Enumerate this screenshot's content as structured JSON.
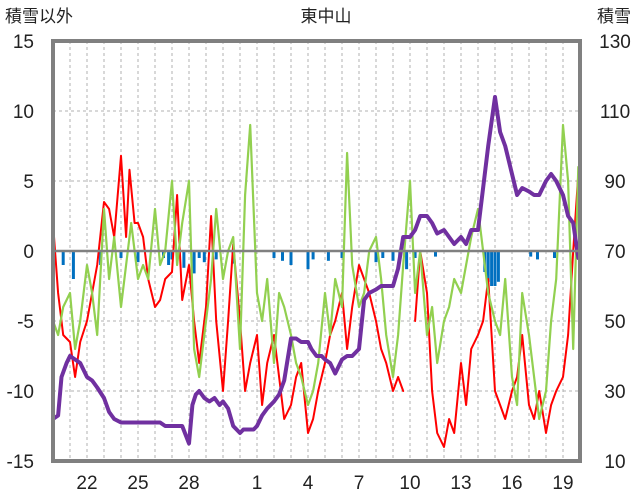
{
  "chart_data": {
    "type": "line",
    "title": "東中山",
    "left_axis_label": "積雪以外",
    "right_axis_label": "積雪",
    "left_ylim": [
      -15,
      15
    ],
    "left_ticks": [
      "15",
      "10",
      "5",
      "0",
      "-5",
      "-10",
      "-15"
    ],
    "right_ylim": [
      10,
      130
    ],
    "right_ticks": [
      "130",
      "110",
      "90",
      "70",
      "50",
      "30",
      "10"
    ],
    "x_day_range": [
      20,
      51
    ],
    "x_ticks": [
      {
        "day": 22,
        "label": "22"
      },
      {
        "day": 25,
        "label": "25"
      },
      {
        "day": 28,
        "label": "28"
      },
      {
        "day": 32,
        "label": "1"
      },
      {
        "day": 35,
        "label": "4"
      },
      {
        "day": 38,
        "label": "7"
      },
      {
        "day": 41,
        "label": "10"
      },
      {
        "day": 44,
        "label": "13"
      },
      {
        "day": 47,
        "label": "16"
      },
      {
        "day": 50,
        "label": "19"
      }
    ],
    "grid": true,
    "colors": {
      "temperature": "#ff0000",
      "temp_change": "#92d050",
      "snow_depth": "#7030a0",
      "snow_change": "#0070c0",
      "frame": "#808080",
      "zero_line": "#808080"
    },
    "series": [
      {
        "color": "#ff0000",
        "axis": "left",
        "x": [
          20.0,
          20.3,
          20.6,
          21.0,
          21.3,
          21.6,
          22.0,
          22.3,
          22.6,
          23.0,
          23.3,
          23.6,
          24.0,
          24.3,
          24.5,
          24.8,
          25.0,
          25.3,
          25.6,
          26.0,
          26.3,
          26.6,
          27.0,
          27.3,
          27.6,
          28.0,
          28.3,
          28.6,
          29.0,
          29.3,
          29.6,
          30.0,
          30.3,
          30.6,
          31.0,
          31.3,
          31.6,
          32.0,
          32.3,
          32.6,
          33.0,
          33.3,
          33.6,
          34.0,
          34.3,
          34.6,
          35.0,
          35.3,
          35.6,
          36.0,
          36.3,
          36.6,
          37.0,
          37.3,
          37.6,
          38.0,
          38.3,
          38.6,
          39.0,
          39.3,
          39.6,
          40.0,
          40.3,
          40.6,
          41.0,
          41.3,
          41.6,
          42.0,
          42.3,
          42.6,
          43.0,
          43.3,
          43.6,
          44.0,
          44.3,
          44.6,
          45.0,
          45.3,
          45.6,
          46.0,
          46.3,
          46.6,
          47.0,
          47.3,
          47.6,
          48.0,
          48.3,
          48.6,
          49.0,
          49.3,
          49.6,
          50.0,
          50.3,
          50.6,
          50.9
        ],
        "y": [
          2,
          -3,
          -6,
          -6.5,
          -9,
          -6.5,
          -5,
          -3,
          -1,
          3.5,
          3,
          1,
          6.8,
          1,
          5.8,
          2,
          2,
          1,
          -2,
          -4,
          -3.5,
          -2,
          -1.5,
          4,
          -3.5,
          -1,
          -5,
          -8,
          -4,
          2.5,
          -5,
          -10,
          -5,
          0.5,
          -5,
          -10,
          -8,
          -6,
          -11,
          -8,
          -6,
          -9,
          -12,
          -11,
          -9,
          -8,
          -13,
          -12,
          -10,
          -8,
          -6,
          -5,
          -3,
          -7,
          -4,
          -1,
          -2,
          -3,
          -5,
          -7,
          -8,
          -10,
          -9,
          -10,
          null,
          -5,
          0,
          -3,
          -10,
          -13,
          -14,
          -12,
          -13,
          -8,
          -11,
          -7,
          -6,
          -5,
          -2,
          -10,
          -11,
          -12,
          -10,
          -9,
          -6,
          -11,
          -12,
          -10,
          -13,
          -11,
          -10,
          -9,
          -6,
          0,
          5.5
        ]
      },
      {
        "color": "#92d050",
        "axis": "left",
        "x": [
          20.0,
          20.3,
          20.6,
          21.0,
          21.3,
          21.6,
          22.0,
          22.3,
          22.6,
          23.0,
          23.3,
          23.6,
          24.0,
          24.3,
          24.6,
          25.0,
          25.3,
          25.6,
          26.0,
          26.3,
          26.6,
          27.0,
          27.3,
          27.6,
          28.0,
          28.3,
          28.6,
          29.0,
          29.3,
          29.6,
          30.0,
          30.3,
          30.6,
          31.0,
          31.3,
          31.6,
          32.0,
          32.3,
          32.6,
          33.0,
          33.3,
          33.6,
          34.0,
          34.3,
          34.6,
          35.0,
          35.3,
          35.6,
          36.0,
          36.3,
          36.6,
          37.0,
          37.3,
          37.6,
          38.0,
          38.3,
          38.6,
          39.0,
          39.3,
          39.6,
          40.0,
          40.3,
          40.6,
          41.0,
          41.3,
          41.6,
          42.0,
          42.3,
          42.6,
          43.0,
          43.3,
          43.6,
          44.0,
          44.3,
          44.6,
          45.0,
          45.3,
          45.6,
          46.0,
          46.3,
          46.6,
          47.0,
          47.3,
          47.6,
          48.0,
          48.3,
          48.6,
          49.0,
          49.3,
          49.6,
          50.0,
          50.3,
          50.6,
          50.9
        ],
        "y": [
          -5,
          -6,
          -4,
          -3,
          -7,
          -5,
          -1,
          -3,
          -6,
          3,
          -2,
          1,
          -4,
          -1,
          2,
          -2,
          -1,
          -2,
          3,
          -1,
          0,
          5,
          -1,
          2,
          5,
          -7,
          -9,
          -5,
          -2,
          3,
          -2,
          0,
          1,
          -7,
          4,
          9,
          -3,
          -5,
          -2,
          -8,
          -3,
          -4,
          -6,
          -8,
          -9,
          -11,
          -10,
          -8,
          -3,
          -6,
          -2,
          -4,
          7,
          -1,
          -4,
          -3,
          0,
          1,
          -2,
          -6,
          -9,
          -6,
          -1,
          5,
          -3,
          0,
          -6,
          -4,
          -8,
          -5,
          -4,
          -2,
          -3,
          -1,
          1,
          3,
          0,
          -3,
          -5,
          -6,
          -2,
          -9,
          -11,
          -3,
          -6,
          -9,
          -12,
          -10,
          -5,
          -2,
          9,
          5,
          -7,
          6
        ]
      },
      {
        "color": "#7030a0",
        "axis": "right",
        "x": [
          20.0,
          20.3,
          20.5,
          20.8,
          21.0,
          21.3,
          21.6,
          22.0,
          22.3,
          22.6,
          23.0,
          23.3,
          23.6,
          24.0,
          24.3,
          24.6,
          25.0,
          25.3,
          25.6,
          26.0,
          26.3,
          26.6,
          27.0,
          27.3,
          27.6,
          28.0,
          28.2,
          28.4,
          28.6,
          28.9,
          29.2,
          29.5,
          29.8,
          30.0,
          30.3,
          30.6,
          31.0,
          31.2,
          31.5,
          31.8,
          32.0,
          32.3,
          32.6,
          33.0,
          33.3,
          33.6,
          34.0,
          34.3,
          34.6,
          35.0,
          35.2,
          35.5,
          35.8,
          36.0,
          36.3,
          36.6,
          37.0,
          37.3,
          37.6,
          38.0,
          38.3,
          38.6,
          39.0,
          39.3,
          39.6,
          40.0,
          40.3,
          40.6,
          41.0,
          41.3,
          41.6,
          42.0,
          42.3,
          42.6,
          43.0,
          43.3,
          43.6,
          44.0,
          44.3,
          44.6,
          45.0,
          45.3,
          45.6,
          46.0,
          46.3,
          46.6,
          47.0,
          47.3,
          47.6,
          48.0,
          48.3,
          48.6,
          49.0,
          49.3,
          49.6,
          50.0,
          50.3,
          50.6,
          50.9
        ],
        "y": [
          22,
          23,
          34,
          38,
          40,
          39,
          38,
          34,
          33,
          31,
          28,
          24,
          22,
          21,
          21,
          21,
          21,
          21,
          21,
          21,
          21,
          20,
          20,
          20,
          20,
          15,
          26,
          29,
          30,
          28,
          27,
          28,
          26,
          27,
          25,
          20,
          18,
          19,
          19,
          19,
          20,
          23,
          25,
          27,
          29,
          33,
          45,
          45,
          44,
          44,
          42,
          40,
          40,
          39,
          38,
          35,
          39,
          40,
          40,
          42,
          56,
          58,
          59,
          60,
          60,
          60,
          65,
          74,
          74,
          76,
          80,
          80,
          78,
          75,
          76,
          74,
          72,
          74,
          72,
          76,
          76,
          88,
          100,
          114,
          104,
          100,
          92,
          86,
          88,
          87,
          86,
          86,
          90,
          92,
          90,
          86,
          80,
          78,
          68
        ]
      }
    ],
    "bars": {
      "color": "#0070c0",
      "axis": "left",
      "x": [
        20.0,
        20.6,
        21.2,
        22.8,
        24.0,
        25.0,
        26.5,
        26.8,
        27.0,
        27.7,
        28.3,
        28.6,
        28.9,
        29.6,
        30.6,
        33.0,
        33.5,
        34.0,
        35.0,
        35.3,
        36.2,
        37.0,
        39.0,
        39.4,
        40.0,
        40.4,
        40.8,
        41.3,
        42.5,
        45.4,
        45.6,
        45.8,
        46.0,
        46.2,
        48.1,
        48.5,
        49.5
      ],
      "y": [
        -3,
        -1,
        -2,
        -1,
        -0.5,
        -0.8,
        -0.5,
        -1,
        -0.6,
        -1.2,
        -1.6,
        -0.5,
        -0.8,
        -0.6,
        -0.9,
        -0.5,
        -0.7,
        -1,
        -1.3,
        -0.6,
        -0.7,
        -0.5,
        -0.8,
        -0.5,
        -0.7,
        -0.6,
        -1.3,
        -0.5,
        -0.4,
        -1.5,
        -2.2,
        -2.5,
        -2.5,
        -2.2,
        -0.4,
        -0.6,
        -0.5
      ]
    }
  }
}
